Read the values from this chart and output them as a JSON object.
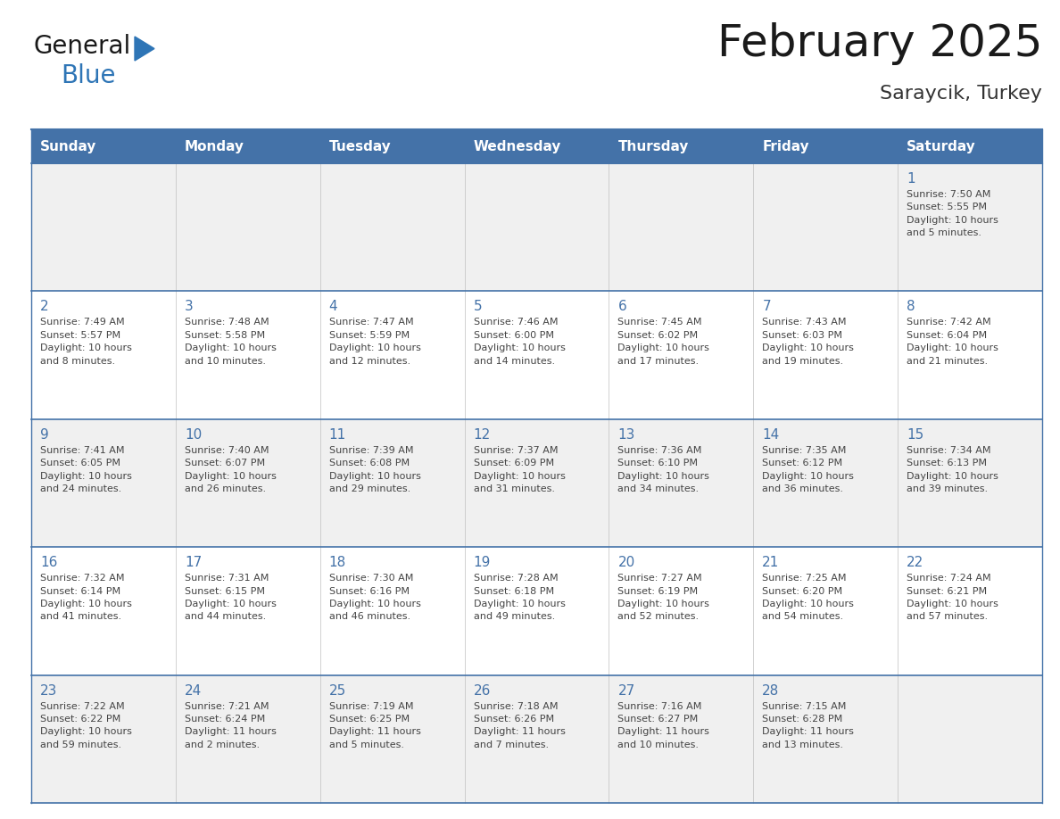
{
  "title": "February 2025",
  "subtitle": "Saraycik, Turkey",
  "days_of_week": [
    "Sunday",
    "Monday",
    "Tuesday",
    "Wednesday",
    "Thursday",
    "Friday",
    "Saturday"
  ],
  "header_bg": "#4472A8",
  "header_text": "#FFFFFF",
  "row_bg_odd": "#F0F0F0",
  "row_bg_even": "#FFFFFF",
  "border_color": "#4472A8",
  "day_number_color": "#4472A8",
  "cell_text_color": "#444444",
  "title_color": "#1a1a1a",
  "subtitle_color": "#333333",
  "generalblue_black": "#1a1a1a",
  "generalblue_blue": "#2E75B6",
  "logo_general_fontsize": 20,
  "logo_blue_fontsize": 20,
  "title_fontsize": 36,
  "subtitle_fontsize": 16,
  "header_fontsize": 11,
  "day_num_fontsize": 11,
  "cell_fontsize": 8,
  "weeks": [
    [
      {
        "day": null,
        "info": null
      },
      {
        "day": null,
        "info": null
      },
      {
        "day": null,
        "info": null
      },
      {
        "day": null,
        "info": null
      },
      {
        "day": null,
        "info": null
      },
      {
        "day": null,
        "info": null
      },
      {
        "day": 1,
        "info": "Sunrise: 7:50 AM\nSunset: 5:55 PM\nDaylight: 10 hours\nand 5 minutes."
      }
    ],
    [
      {
        "day": 2,
        "info": "Sunrise: 7:49 AM\nSunset: 5:57 PM\nDaylight: 10 hours\nand 8 minutes."
      },
      {
        "day": 3,
        "info": "Sunrise: 7:48 AM\nSunset: 5:58 PM\nDaylight: 10 hours\nand 10 minutes."
      },
      {
        "day": 4,
        "info": "Sunrise: 7:47 AM\nSunset: 5:59 PM\nDaylight: 10 hours\nand 12 minutes."
      },
      {
        "day": 5,
        "info": "Sunrise: 7:46 AM\nSunset: 6:00 PM\nDaylight: 10 hours\nand 14 minutes."
      },
      {
        "day": 6,
        "info": "Sunrise: 7:45 AM\nSunset: 6:02 PM\nDaylight: 10 hours\nand 17 minutes."
      },
      {
        "day": 7,
        "info": "Sunrise: 7:43 AM\nSunset: 6:03 PM\nDaylight: 10 hours\nand 19 minutes."
      },
      {
        "day": 8,
        "info": "Sunrise: 7:42 AM\nSunset: 6:04 PM\nDaylight: 10 hours\nand 21 minutes."
      }
    ],
    [
      {
        "day": 9,
        "info": "Sunrise: 7:41 AM\nSunset: 6:05 PM\nDaylight: 10 hours\nand 24 minutes."
      },
      {
        "day": 10,
        "info": "Sunrise: 7:40 AM\nSunset: 6:07 PM\nDaylight: 10 hours\nand 26 minutes."
      },
      {
        "day": 11,
        "info": "Sunrise: 7:39 AM\nSunset: 6:08 PM\nDaylight: 10 hours\nand 29 minutes."
      },
      {
        "day": 12,
        "info": "Sunrise: 7:37 AM\nSunset: 6:09 PM\nDaylight: 10 hours\nand 31 minutes."
      },
      {
        "day": 13,
        "info": "Sunrise: 7:36 AM\nSunset: 6:10 PM\nDaylight: 10 hours\nand 34 minutes."
      },
      {
        "day": 14,
        "info": "Sunrise: 7:35 AM\nSunset: 6:12 PM\nDaylight: 10 hours\nand 36 minutes."
      },
      {
        "day": 15,
        "info": "Sunrise: 7:34 AM\nSunset: 6:13 PM\nDaylight: 10 hours\nand 39 minutes."
      }
    ],
    [
      {
        "day": 16,
        "info": "Sunrise: 7:32 AM\nSunset: 6:14 PM\nDaylight: 10 hours\nand 41 minutes."
      },
      {
        "day": 17,
        "info": "Sunrise: 7:31 AM\nSunset: 6:15 PM\nDaylight: 10 hours\nand 44 minutes."
      },
      {
        "day": 18,
        "info": "Sunrise: 7:30 AM\nSunset: 6:16 PM\nDaylight: 10 hours\nand 46 minutes."
      },
      {
        "day": 19,
        "info": "Sunrise: 7:28 AM\nSunset: 6:18 PM\nDaylight: 10 hours\nand 49 minutes."
      },
      {
        "day": 20,
        "info": "Sunrise: 7:27 AM\nSunset: 6:19 PM\nDaylight: 10 hours\nand 52 minutes."
      },
      {
        "day": 21,
        "info": "Sunrise: 7:25 AM\nSunset: 6:20 PM\nDaylight: 10 hours\nand 54 minutes."
      },
      {
        "day": 22,
        "info": "Sunrise: 7:24 AM\nSunset: 6:21 PM\nDaylight: 10 hours\nand 57 minutes."
      }
    ],
    [
      {
        "day": 23,
        "info": "Sunrise: 7:22 AM\nSunset: 6:22 PM\nDaylight: 10 hours\nand 59 minutes."
      },
      {
        "day": 24,
        "info": "Sunrise: 7:21 AM\nSunset: 6:24 PM\nDaylight: 11 hours\nand 2 minutes."
      },
      {
        "day": 25,
        "info": "Sunrise: 7:19 AM\nSunset: 6:25 PM\nDaylight: 11 hours\nand 5 minutes."
      },
      {
        "day": 26,
        "info": "Sunrise: 7:18 AM\nSunset: 6:26 PM\nDaylight: 11 hours\nand 7 minutes."
      },
      {
        "day": 27,
        "info": "Sunrise: 7:16 AM\nSunset: 6:27 PM\nDaylight: 11 hours\nand 10 minutes."
      },
      {
        "day": 28,
        "info": "Sunrise: 7:15 AM\nSunset: 6:28 PM\nDaylight: 11 hours\nand 13 minutes."
      },
      {
        "day": null,
        "info": null
      }
    ]
  ]
}
